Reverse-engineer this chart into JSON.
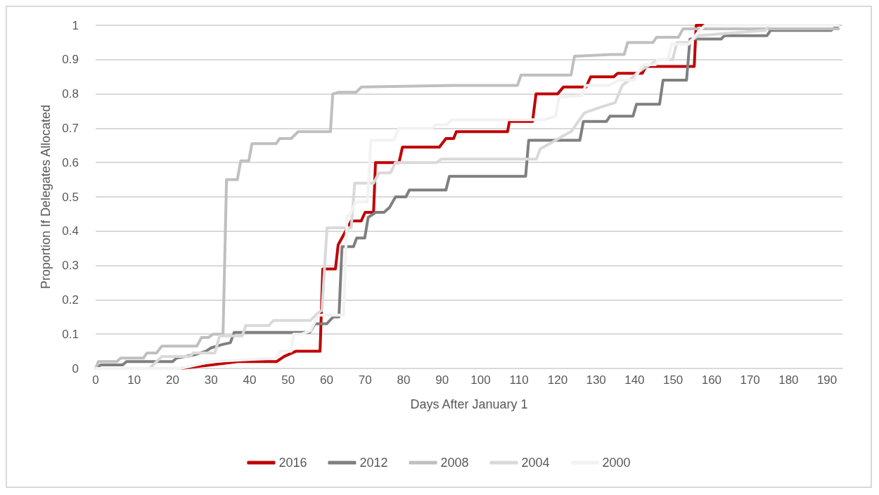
{
  "chart_data": {
    "type": "line",
    "xlabel": "Days After January 1",
    "ylabel": "Proportion If Delegates Allocated",
    "xlim": [
      0,
      194
    ],
    "xticks": [
      0,
      10,
      20,
      30,
      40,
      50,
      60,
      70,
      80,
      90,
      100,
      110,
      120,
      130,
      140,
      150,
      160,
      170,
      180,
      190
    ],
    "ylim": [
      0,
      1
    ],
    "yticks": [
      0,
      0.1,
      0.2,
      0.3,
      0.4,
      0.5,
      0.6,
      0.7,
      0.8,
      0.9,
      1
    ],
    "grid": "y",
    "legend": "bottom",
    "marker": "none",
    "line_style": "solid",
    "series": [
      {
        "name": "2016",
        "color": "#c00000",
        "x": [
          22,
          30,
          37,
          47,
          49,
          52,
          58.3,
          59,
          62.3,
          63,
          66.4,
          69,
          70,
          72.2,
          72.7,
          78.8,
          79.7,
          89.3,
          91,
          93,
          93.7,
          107,
          107.5,
          113.5,
          114.4,
          120,
          121.5,
          127.4,
          128.6,
          134.6,
          135.6,
          142,
          143,
          155.5,
          156,
          193
        ],
        "values": [
          0,
          0.01,
          0.02,
          0.02,
          0.035,
          0.05,
          0.05,
          0.29,
          0.29,
          0.36,
          0.43,
          0.43,
          0.455,
          0.455,
          0.6,
          0.6,
          0.645,
          0.645,
          0.67,
          0.67,
          0.69,
          0.69,
          0.72,
          0.72,
          0.8,
          0.8,
          0.82,
          0.82,
          0.85,
          0.85,
          0.86,
          0.86,
          0.88,
          0.88,
          1,
          1
        ]
      },
      {
        "name": "2012",
        "color": "#7f7f7f",
        "x": [
          0,
          1.3,
          7,
          8,
          20,
          21,
          25.7,
          28.6,
          30,
          33,
          35,
          36,
          55.6,
          57,
          60,
          61.7,
          63.2,
          64,
          67,
          67.8,
          69.9,
          70.8,
          72.8,
          74.9,
          76.4,
          77.9,
          80.6,
          81.5,
          91,
          91.9,
          111.7,
          112.5,
          125.8,
          126.7,
          132.7,
          133.6,
          139.6,
          140.5,
          146.5,
          147.4,
          153.5,
          154.4,
          162.5,
          163.4,
          174.4,
          175.3,
          191,
          193
        ],
        "values": [
          0,
          0.01,
          0.01,
          0.02,
          0.02,
          0.03,
          0.04,
          0.05,
          0.06,
          0.07,
          0.075,
          0.105,
          0.105,
          0.13,
          0.13,
          0.15,
          0.15,
          0.355,
          0.355,
          0.38,
          0.38,
          0.44,
          0.455,
          0.455,
          0.47,
          0.5,
          0.5,
          0.52,
          0.52,
          0.56,
          0.56,
          0.665,
          0.665,
          0.72,
          0.72,
          0.735,
          0.735,
          0.77,
          0.77,
          0.84,
          0.84,
          0.96,
          0.96,
          0.97,
          0.97,
          0.985,
          0.985,
          1
        ]
      },
      {
        "name": "2008",
        "color": "#bfbfbf",
        "x": [
          0,
          0.7,
          5.5,
          6.5,
          12.4,
          13.3,
          15.8,
          17.2,
          26.3,
          27.5,
          29.3,
          30.5,
          33.1,
          34,
          36.8,
          37.7,
          39.8,
          40.6,
          46.9,
          47.8,
          50.8,
          52.6,
          61,
          61.6,
          63.2,
          67.7,
          69,
          92.9,
          109.6,
          110.5,
          123.5,
          124.4,
          134,
          137.3,
          138.2,
          144.8,
          145.7,
          151.4,
          152.6,
          193
        ],
        "values": [
          0,
          0.02,
          0.02,
          0.03,
          0.03,
          0.045,
          0.045,
          0.065,
          0.065,
          0.09,
          0.09,
          0.1,
          0.1,
          0.55,
          0.55,
          0.605,
          0.605,
          0.655,
          0.655,
          0.67,
          0.67,
          0.69,
          0.69,
          0.8,
          0.805,
          0.805,
          0.82,
          0.825,
          0.825,
          0.855,
          0.855,
          0.91,
          0.915,
          0.915,
          0.95,
          0.95,
          0.965,
          0.965,
          0.99,
          0.99
        ]
      },
      {
        "name": "2004",
        "color": "#d9d9d9",
        "x": [
          14,
          17.2,
          24.5,
          25.4,
          31,
          32.2,
          38.1,
          39,
          45,
          46.2,
          55.8,
          57.6,
          58.8,
          60.1,
          66.4,
          67.3,
          72.2,
          73.6,
          76.6,
          77.9,
          88.6,
          89.8,
          114.5,
          115.5,
          118,
          121,
          123.5,
          127,
          130.8,
          135,
          136.8,
          139.2,
          141,
          146.3,
          149.9,
          151,
          154,
          156.5,
          174,
          175,
          193
        ],
        "values": [
          0,
          0.035,
          0.035,
          0.045,
          0.045,
          0.095,
          0.095,
          0.125,
          0.125,
          0.14,
          0.14,
          0.16,
          0.17,
          0.41,
          0.41,
          0.54,
          0.54,
          0.57,
          0.57,
          0.6,
          0.6,
          0.61,
          0.61,
          0.64,
          0.655,
          0.675,
          0.69,
          0.745,
          0.76,
          0.775,
          0.825,
          0.845,
          0.865,
          0.9,
          0.9,
          0.95,
          0.95,
          0.97,
          0.985,
          1,
          1
        ]
      },
      {
        "name": "2000",
        "color": "#f2f2f2",
        "x": [
          0,
          22,
          30,
          47,
          48,
          50.8,
          51.4,
          53.5,
          55.8,
          57.9,
          64.4,
          65.3,
          66,
          67.5,
          70.6,
          71.5,
          77.5,
          78.7,
          87.4,
          88.3,
          91.3,
          92.5,
          116.5,
          119.5,
          120.4,
          126.3,
          127.3,
          133.3,
          136,
          139.9,
          142,
          145.4,
          146,
          148.7,
          149.6,
          154.1,
          156.5,
          158.3,
          193
        ],
        "values": [
          0,
          0,
          0.02,
          0.03,
          0.05,
          0.05,
          0.1,
          0.1,
          0.11,
          0.155,
          0.155,
          0.445,
          0.445,
          0.485,
          0.485,
          0.665,
          0.665,
          0.7,
          0.7,
          0.71,
          0.71,
          0.725,
          0.725,
          0.735,
          0.79,
          0.795,
          0.825,
          0.825,
          0.84,
          0.84,
          0.885,
          0.885,
          0.9,
          0.9,
          0.945,
          0.945,
          0.98,
          1,
          1
        ]
      }
    ]
  }
}
